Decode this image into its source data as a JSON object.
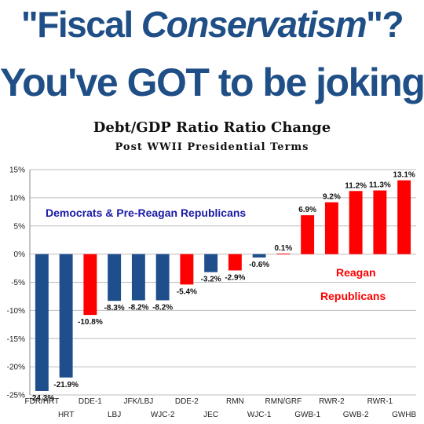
{
  "headline": {
    "line1_open": "\"Fiscal ",
    "line1_italic": "Conservatism",
    "line1_close": "\"?",
    "line2": "You've GOT to be joking!"
  },
  "colors": {
    "headline": "#1f4f86",
    "democrat": "#1f4e8c",
    "republican": "#ff0000",
    "annotation_blue": "#1a1aa6"
  },
  "chart_data": {
    "type": "bar",
    "title": "Debt/GDP Ratio Ratio Change",
    "subtitle": "Post WWII Presidential Terms",
    "categories": [
      "FDR/HRT",
      "HRT",
      "DDE-1",
      "LBJ",
      "JFK/LBJ",
      "WJC-2",
      "DDE-2",
      "JEC",
      "RMN",
      "WJC-1",
      "RMN/GRF",
      "GWB-1",
      "RWR-2",
      "GWB-2",
      "RWR-1",
      "GWHB"
    ],
    "values": [
      -24.3,
      -21.9,
      -10.8,
      -8.3,
      -8.2,
      -8.2,
      -5.4,
      -3.2,
      -2.9,
      -0.6,
      0.1,
      6.9,
      9.2,
      11.2,
      11.3,
      13.1
    ],
    "value_labels": [
      "-24.3%",
      "-21.9%",
      "-10.8%",
      "-8.3%",
      "-8.2%",
      "-8.2%",
      "-5.4%",
      "-3.2%",
      "-2.9%",
      "-0.6%",
      "0.1%",
      "6.9%",
      "9.2%",
      "11.2%",
      "11.3%",
      "13.1%"
    ],
    "bar_colors": [
      "democrat",
      "democrat",
      "republican",
      "democrat",
      "democrat",
      "democrat",
      "republican",
      "democrat",
      "republican",
      "democrat",
      "republican",
      "republican",
      "republican",
      "republican",
      "republican",
      "republican"
    ],
    "ylim": [
      -25,
      15
    ],
    "yticks": [
      15,
      10,
      5,
      0,
      -5,
      -10,
      -15,
      -20,
      -25
    ],
    "ytick_labels": [
      "15%",
      "10%",
      "5%",
      "0%",
      "-5%",
      "-10%",
      "-15%",
      "-20%",
      "-25%"
    ],
    "grid": true,
    "annotations": {
      "left_group": "Democrats & Pre-Reagan Republicans",
      "right_group_line1": "Reagan",
      "right_group_line2": "Republicans"
    }
  }
}
